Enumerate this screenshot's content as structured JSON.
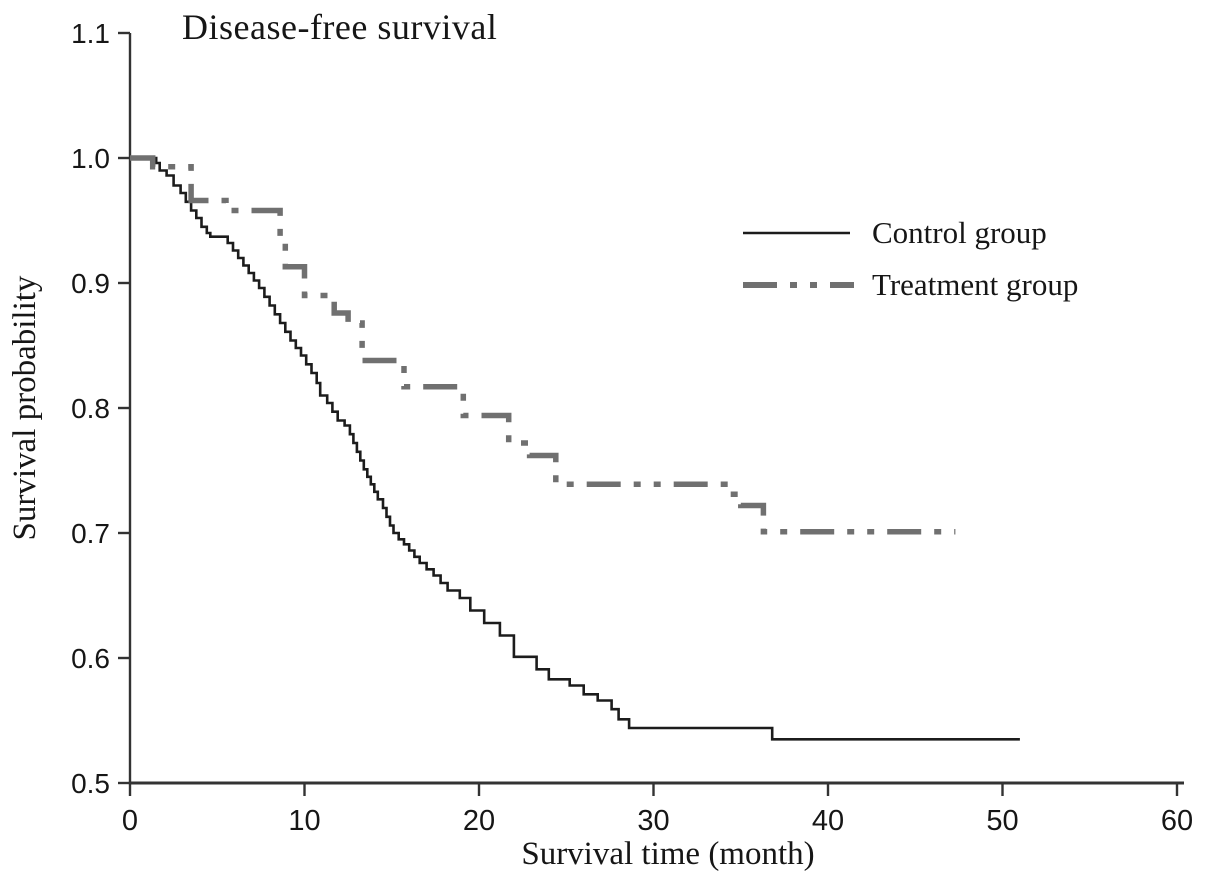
{
  "page": {
    "background": "#ffffff"
  },
  "chart_data": {
    "type": "line",
    "subtype": "kaplan-meier-step-curves",
    "title": "Disease-free survival",
    "xlabel": "Survival time (month)",
    "ylabel": "Survival probability",
    "xlim": [
      0,
      60
    ],
    "ylim": [
      0.5,
      1.1
    ],
    "xticks": [
      "0",
      "10",
      "20",
      "30",
      "40",
      "50",
      "60"
    ],
    "yticks": [
      "0.5",
      "0.6",
      "0.7",
      "0.8",
      "0.9",
      "1.0",
      "1.1"
    ],
    "grid": false,
    "legend_position": "upper-right",
    "axis_color": "#333333",
    "tick_label_color": "#161616",
    "series": [
      {
        "name": "Control group",
        "style": "solid",
        "color": "#1c1c1c",
        "stroke_width": 2.6,
        "end_month": 51,
        "points": [
          [
            0,
            1.0
          ],
          [
            1.5,
            0.996
          ],
          [
            1.7,
            0.99
          ],
          [
            2.1,
            0.986
          ],
          [
            2.5,
            0.978
          ],
          [
            2.9,
            0.972
          ],
          [
            3.2,
            0.965
          ],
          [
            3.5,
            0.958
          ],
          [
            3.8,
            0.952
          ],
          [
            4.1,
            0.945
          ],
          [
            4.4,
            0.94
          ],
          [
            4.6,
            0.937
          ],
          [
            5.6,
            0.932
          ],
          [
            5.9,
            0.926
          ],
          [
            6.2,
            0.92
          ],
          [
            6.5,
            0.914
          ],
          [
            6.8,
            0.908
          ],
          [
            7.1,
            0.902
          ],
          [
            7.4,
            0.896
          ],
          [
            7.7,
            0.889
          ],
          [
            8.0,
            0.882
          ],
          [
            8.3,
            0.875
          ],
          [
            8.6,
            0.868
          ],
          [
            8.9,
            0.861
          ],
          [
            9.2,
            0.854
          ],
          [
            9.5,
            0.848
          ],
          [
            9.8,
            0.842
          ],
          [
            10.1,
            0.835
          ],
          [
            10.4,
            0.828
          ],
          [
            10.7,
            0.82
          ],
          [
            10.9,
            0.81
          ],
          [
            11.3,
            0.804
          ],
          [
            11.6,
            0.797
          ],
          [
            11.9,
            0.79
          ],
          [
            12.3,
            0.786
          ],
          [
            12.6,
            0.779
          ],
          [
            12.8,
            0.772
          ],
          [
            13.0,
            0.765
          ],
          [
            13.2,
            0.758
          ],
          [
            13.4,
            0.751
          ],
          [
            13.6,
            0.745
          ],
          [
            13.8,
            0.739
          ],
          [
            14.0,
            0.733
          ],
          [
            14.2,
            0.727
          ],
          [
            14.5,
            0.72
          ],
          [
            14.7,
            0.713
          ],
          [
            14.9,
            0.706
          ],
          [
            15.1,
            0.7
          ],
          [
            15.4,
            0.695
          ],
          [
            15.7,
            0.691
          ],
          [
            16.0,
            0.686
          ],
          [
            16.3,
            0.681
          ],
          [
            16.6,
            0.676
          ],
          [
            17.0,
            0.671
          ],
          [
            17.4,
            0.666
          ],
          [
            17.8,
            0.66
          ],
          [
            18.2,
            0.654
          ],
          [
            18.9,
            0.648
          ],
          [
            19.5,
            0.638
          ],
          [
            20.3,
            0.628
          ],
          [
            21.2,
            0.618
          ],
          [
            22.0,
            0.601
          ],
          [
            23.3,
            0.591
          ],
          [
            24.0,
            0.583
          ],
          [
            25.2,
            0.578
          ],
          [
            26.0,
            0.571
          ],
          [
            26.8,
            0.566
          ],
          [
            27.6,
            0.559
          ],
          [
            28.0,
            0.551
          ],
          [
            28.6,
            0.544
          ],
          [
            36.8,
            0.535
          ]
        ]
      },
      {
        "name": "Treatment group",
        "style": "dash-dot-dot",
        "color": "#707070",
        "stroke_width": 5.5,
        "dash_pattern": [
          34,
          13,
          7,
          13,
          7,
          13
        ],
        "end_month": 47.3,
        "points": [
          [
            0,
            1.0
          ],
          [
            1.3,
            0.993
          ],
          [
            3.5,
            0.966
          ],
          [
            5.5,
            0.958
          ],
          [
            8.6,
            0.934
          ],
          [
            8.9,
            0.913
          ],
          [
            10.0,
            0.89
          ],
          [
            11.7,
            0.876
          ],
          [
            12.5,
            0.868
          ],
          [
            13.3,
            0.838
          ],
          [
            15.7,
            0.817
          ],
          [
            19.1,
            0.794
          ],
          [
            21.7,
            0.772
          ],
          [
            22.9,
            0.762
          ],
          [
            24.4,
            0.739
          ],
          [
            34.4,
            0.731
          ],
          [
            35.0,
            0.722
          ],
          [
            36.3,
            0.701
          ]
        ]
      }
    ],
    "legend": [
      {
        "label": "Control group"
      },
      {
        "label": "Treatment group"
      }
    ]
  }
}
